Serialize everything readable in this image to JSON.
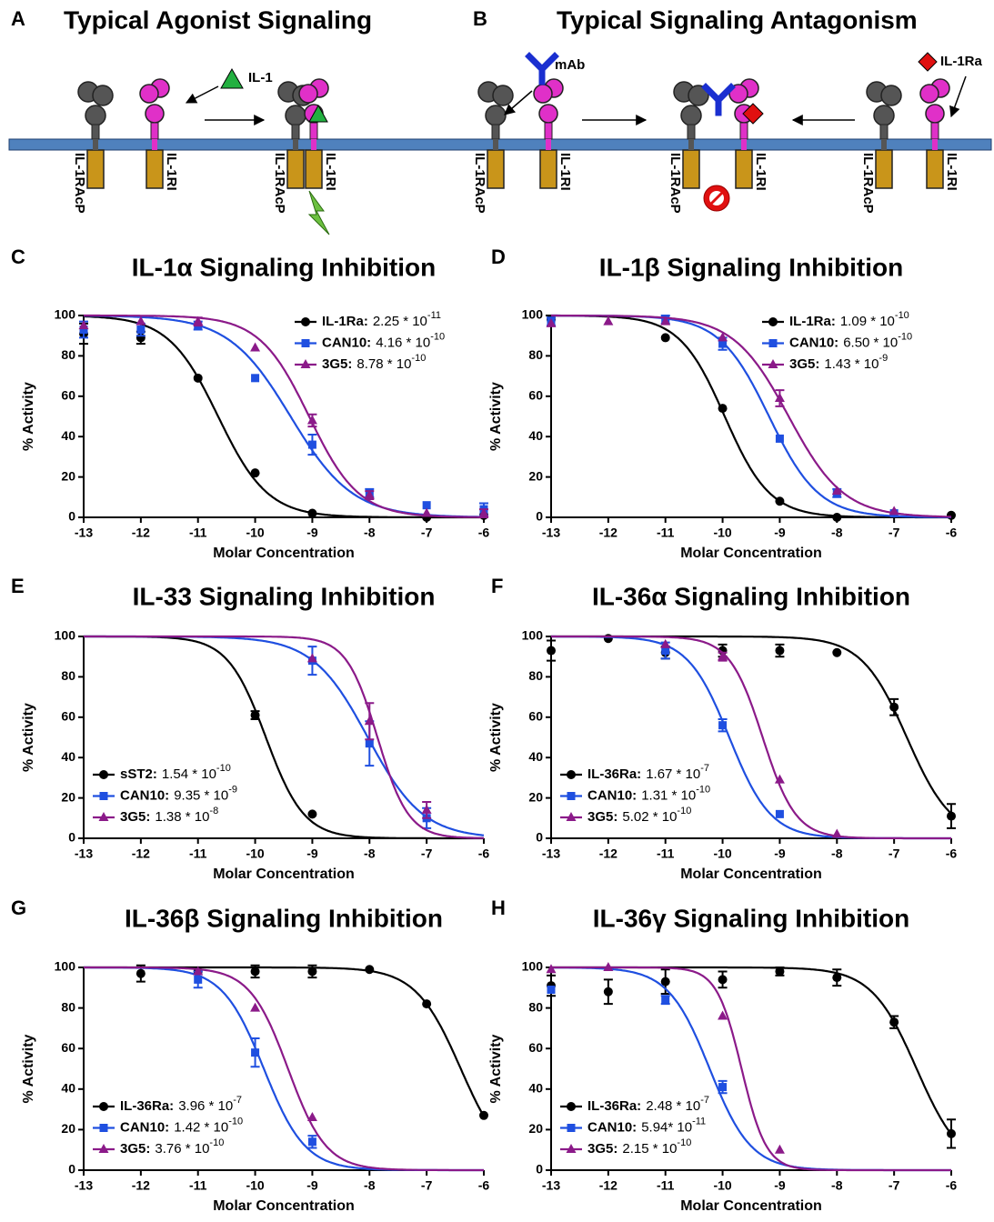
{
  "diagram": {
    "panel_a": "A",
    "title_a": "Typical Agonist Signaling",
    "panel_b": "B",
    "title_b": "Typical Signaling Antagonism",
    "ligand": "IL-1",
    "antibody": "mAb",
    "antagonist": "IL-1Ra",
    "accessory_receptor": "IL-1RAcP",
    "receptor": "IL-1RI"
  },
  "chart_data": [
    {
      "type": "dose-response",
      "panel": "C",
      "title": "IL-1α Signaling Inhibition",
      "xlabel": "Molar Concentration",
      "ylabel": "% Activity",
      "xlim": [
        -13,
        -6
      ],
      "xticks": [
        -13,
        -12,
        -11,
        -10,
        -9,
        -8,
        -7,
        -6
      ],
      "ylim": [
        0,
        100
      ],
      "yticks": [
        0,
        20,
        40,
        60,
        80,
        100
      ],
      "legend": "upper right",
      "series": [
        {
          "name": "IL-1Ra:",
          "color": "#000000",
          "marker": "circle",
          "x": [
            -13,
            -12,
            -11,
            -10,
            -9,
            -7,
            -6
          ],
          "values": [
            91,
            89,
            69,
            22,
            2,
            0,
            1
          ],
          "errors": [
            5,
            3,
            null,
            null,
            null,
            null,
            null
          ],
          "ic50": {
            "value": 2.25e-11,
            "label": "2.25 * 10",
            "exponent": "-11"
          },
          "hill_slope": 1
        },
        {
          "name": "CAN10:",
          "color": "#1f4fe0",
          "marker": "square",
          "x": [
            -13,
            -12,
            -11,
            -10,
            -9,
            -8,
            -7,
            -6
          ],
          "values": [
            93,
            93,
            95,
            69,
            36,
            12,
            6,
            4
          ],
          "errors": [
            4,
            3,
            2,
            null,
            5,
            2,
            null,
            3
          ],
          "ic50": {
            "value": 4.16e-10,
            "label": "4.16 * 10",
            "exponent": "-10"
          },
          "hill_slope": 0.8
        },
        {
          "name": "3G5:",
          "color": "#8b1a89",
          "marker": "triangle",
          "x": [
            -13,
            -12,
            -11,
            -10,
            -9,
            -8,
            -7,
            -6
          ],
          "values": [
            95,
            97,
            97,
            84,
            48,
            11,
            2,
            2
          ],
          "errors": [
            null,
            null,
            2,
            null,
            3,
            2,
            null,
            2
          ],
          "ic50": {
            "value": 8.78e-10,
            "label": "8.78 * 10",
            "exponent": "-10"
          },
          "hill_slope": 1
        }
      ]
    },
    {
      "type": "dose-response",
      "panel": "D",
      "title": "IL-1β Signaling Inhibition",
      "xlabel": "Molar Concentration",
      "ylabel": "% Activity",
      "xlim": [
        -13,
        -6
      ],
      "xticks": [
        -13,
        -12,
        -11,
        -10,
        -9,
        -8,
        -7,
        -6
      ],
      "ylim": [
        0,
        100
      ],
      "yticks": [
        0,
        20,
        40,
        60,
        80,
        100
      ],
      "legend": "upper right",
      "series": [
        {
          "name": "IL-1Ra:",
          "color": "#000000",
          "marker": "circle",
          "x": [
            -13,
            -11,
            -10,
            -9,
            -8,
            -6
          ],
          "values": [
            98,
            89,
            54,
            8,
            0,
            1
          ],
          "errors": [
            null,
            null,
            null,
            null,
            null,
            null
          ],
          "ic50": {
            "value": 1.09e-10,
            "label": "1.09 * 10",
            "exponent": "-10"
          },
          "hill_slope": 1.1
        },
        {
          "name": "CAN10:",
          "color": "#1f4fe0",
          "marker": "square",
          "x": [
            -13,
            -11,
            -10,
            -9,
            -8,
            -7
          ],
          "values": [
            97,
            98,
            86,
            39,
            12,
            2
          ],
          "errors": [
            2,
            2,
            3,
            null,
            2,
            null
          ],
          "ic50": {
            "value": 6.5e-10,
            "label": "6.50 * 10",
            "exponent": "-10"
          },
          "hill_slope": 1
        },
        {
          "name": "3G5:",
          "color": "#8b1a89",
          "marker": "triangle",
          "x": [
            -13,
            -12,
            -11,
            -10,
            -9,
            -8,
            -7
          ],
          "values": [
            96,
            97,
            97,
            89,
            59,
            13,
            3
          ],
          "errors": [
            null,
            null,
            null,
            null,
            4,
            null,
            null
          ],
          "ic50": {
            "value": 1.43e-09,
            "label": "1.43 * 10",
            "exponent": "-9"
          },
          "hill_slope": 0.9
        }
      ]
    },
    {
      "type": "dose-response",
      "panel": "E",
      "title": "IL-33 Signaling Inhibition",
      "xlabel": "Molar Concentration",
      "ylabel": "% Activity",
      "xlim": [
        -13,
        -6
      ],
      "xticks": [
        -13,
        -12,
        -11,
        -10,
        -9,
        -8,
        -7,
        -6
      ],
      "ylim": [
        0,
        100
      ],
      "yticks": [
        0,
        20,
        40,
        60,
        80,
        100
      ],
      "legend": "lower left",
      "series": [
        {
          "name": "sST2:",
          "color": "#000000",
          "marker": "circle",
          "x": [
            -10,
            -9
          ],
          "values": [
            61,
            12
          ],
          "errors": [
            2,
            null
          ],
          "ic50": {
            "value": 1.54e-10,
            "label": "1.54 * 10",
            "exponent": "-10"
          },
          "hill_slope": 1.3
        },
        {
          "name": "CAN10:",
          "color": "#1f4fe0",
          "marker": "square",
          "x": [
            -9,
            -8,
            -7
          ],
          "values": [
            88,
            47,
            10
          ],
          "errors": [
            7,
            11,
            5
          ],
          "ic50": {
            "value": 9.35e-09,
            "label": "9.35 * 10",
            "exponent": "-9"
          },
          "hill_slope": 0.9
        },
        {
          "name": "3G5:",
          "color": "#8b1a89",
          "marker": "triangle",
          "x": [
            -9,
            -8,
            -7
          ],
          "values": [
            89,
            58,
            14
          ],
          "errors": [
            null,
            9,
            4
          ],
          "ic50": {
            "value": 1.38e-08,
            "label": "1.38 * 10",
            "exponent": "-8"
          },
          "hill_slope": 1.6
        }
      ]
    },
    {
      "type": "dose-response",
      "panel": "F",
      "title": "IL-36α Signaling Inhibition",
      "xlabel": "Molar Concentration",
      "ylabel": "% Activity",
      "xlim": [
        -13,
        -6
      ],
      "xticks": [
        -13,
        -12,
        -11,
        -10,
        -9,
        -8,
        -7,
        -6
      ],
      "ylim": [
        0,
        100
      ],
      "yticks": [
        0,
        20,
        40,
        60,
        80,
        100
      ],
      "legend": "lower left",
      "series": [
        {
          "name": "IL-36Ra:",
          "color": "#000000",
          "marker": "circle",
          "x": [
            -13,
            -12,
            -11,
            -10,
            -9,
            -8,
            -7,
            -6
          ],
          "values": [
            93,
            99,
            92,
            93,
            93,
            92,
            65,
            11
          ],
          "errors": [
            5,
            null,
            3,
            3,
            3,
            null,
            4,
            6
          ],
          "ic50": {
            "value": 1.67e-07,
            "label": "1.67 * 10",
            "exponent": "-7"
          },
          "hill_slope": 1.1
        },
        {
          "name": "CAN10:",
          "color": "#1f4fe0",
          "marker": "square",
          "x": [
            -11,
            -10,
            -9
          ],
          "values": [
            93,
            56,
            12
          ],
          "errors": [
            4,
            3,
            null
          ],
          "ic50": {
            "value": 1.31e-10,
            "label": "1.31 * 10",
            "exponent": "-10"
          },
          "hill_slope": 1.2
        },
        {
          "name": "3G5:",
          "color": "#8b1a89",
          "marker": "triangle",
          "x": [
            -11,
            -10,
            -9,
            -8
          ],
          "values": [
            96,
            90,
            29,
            2
          ],
          "errors": [
            null,
            2,
            null,
            null
          ],
          "ic50": {
            "value": 5.02e-10,
            "label": "5.02 * 10",
            "exponent": "-10"
          },
          "hill_slope": 1.5
        }
      ]
    },
    {
      "type": "dose-response",
      "panel": "G",
      "title": "IL-36β Signaling Inhibition",
      "xlabel": "Molar Concentration",
      "ylabel": "% Activity",
      "xlim": [
        -13,
        -6
      ],
      "xticks": [
        -13,
        -12,
        -11,
        -10,
        -9,
        -8,
        -7,
        -6
      ],
      "ylim": [
        0,
        100
      ],
      "yticks": [
        0,
        20,
        40,
        60,
        80,
        100
      ],
      "legend": "lower left",
      "series": [
        {
          "name": "IL-36Ra:",
          "color": "#000000",
          "marker": "circle",
          "x": [
            -12,
            -11,
            -10,
            -9,
            -8,
            -7,
            -6
          ],
          "values": [
            97,
            98,
            98,
            98,
            99,
            82,
            27
          ],
          "errors": [
            4,
            null,
            3,
            3,
            null,
            null,
            null
          ],
          "ic50": {
            "value": 3.96e-07,
            "label": "3.96 * 10",
            "exponent": "-7"
          },
          "hill_slope": 1.1
        },
        {
          "name": "CAN10:",
          "color": "#1f4fe0",
          "marker": "square",
          "x": [
            -11,
            -10,
            -9
          ],
          "values": [
            94,
            58,
            14
          ],
          "errors": [
            4,
            7,
            3
          ],
          "ic50": {
            "value": 1.42e-10,
            "label": "1.42 * 10",
            "exponent": "-10"
          },
          "hill_slope": 1.2
        },
        {
          "name": "3G5:",
          "color": "#8b1a89",
          "marker": "triangle",
          "x": [
            -11,
            -10,
            -9
          ],
          "values": [
            98,
            80,
            26
          ],
          "errors": [
            null,
            null,
            null
          ],
          "ic50": {
            "value": 3.76e-10,
            "label": "3.76 * 10",
            "exponent": "-10"
          },
          "hill_slope": 1.3
        }
      ]
    },
    {
      "type": "dose-response",
      "panel": "H",
      "title": "IL-36γ Signaling Inhibition",
      "xlabel": "Molar Concentration",
      "ylabel": "% Activity",
      "xlim": [
        -13,
        -6
      ],
      "xticks": [
        -13,
        -12,
        -11,
        -10,
        -9,
        -8,
        -7,
        -6
      ],
      "ylim": [
        0,
        100
      ],
      "yticks": [
        0,
        20,
        40,
        60,
        80,
        100
      ],
      "legend": "lower left",
      "series": [
        {
          "name": "IL-36Ra:",
          "color": "#000000",
          "marker": "circle",
          "x": [
            -13,
            -12,
            -11,
            -10,
            -9,
            -8,
            -7,
            -6
          ],
          "values": [
            91,
            88,
            93,
            94,
            98,
            95,
            73,
            18
          ],
          "errors": [
            5,
            6,
            6,
            4,
            2,
            4,
            3,
            7
          ],
          "ic50": {
            "value": 2.48e-07,
            "label": "2.48 * 10",
            "exponent": "-7"
          },
          "hill_slope": 1.1
        },
        {
          "name": "CAN10:",
          "color": "#1f4fe0",
          "marker": "square",
          "x": [
            -13,
            -11,
            -10
          ],
          "values": [
            89,
            84,
            41
          ],
          "errors": [
            null,
            2,
            3
          ],
          "ic50": {
            "value": 5.94e-11,
            "label": "5.94* 10",
            "exponent": "-11"
          },
          "hill_slope": 1.2
        },
        {
          "name": "3G5:",
          "color": "#8b1a89",
          "marker": "triangle",
          "x": [
            -13,
            -12,
            -10,
            -9
          ],
          "values": [
            99,
            100,
            76,
            10
          ],
          "errors": [
            null,
            null,
            null,
            null
          ],
          "ic50": {
            "value": 2.15e-10,
            "label": "2.15 * 10",
            "exponent": "-10"
          },
          "hill_slope": 2
        }
      ]
    }
  ]
}
